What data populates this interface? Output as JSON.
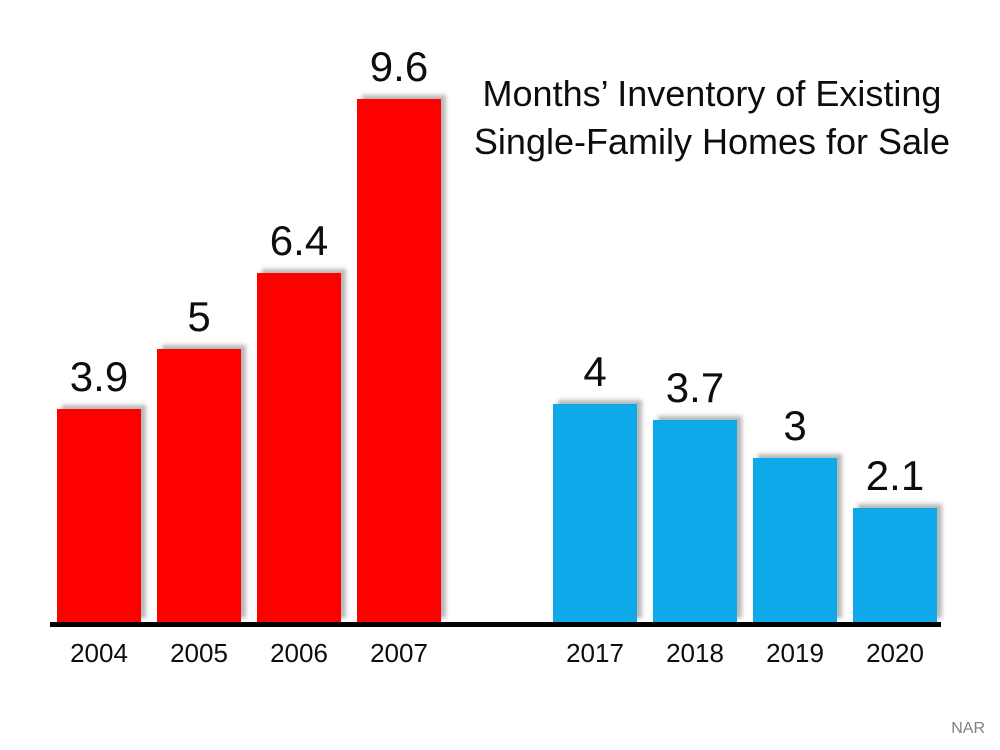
{
  "title": {
    "line1": "Months’ Inventory of Existing",
    "line2": "Single-Family Homes for Sale"
  },
  "source": "NAR",
  "chart_data": {
    "type": "bar",
    "title": "Months’ Inventory of Existing Single-Family Homes for Sale",
    "xlabel": "",
    "ylabel": "",
    "ylim": [
      0,
      10
    ],
    "grid": false,
    "legend": false,
    "data_labels": true,
    "axis_color": "#000000",
    "background_color": "#ffffff",
    "source_label": "NAR",
    "categories": [
      "2004",
      "2005",
      "2006",
      "2007",
      "2017",
      "2018",
      "2019",
      "2020"
    ],
    "values": [
      3.9,
      5,
      6.4,
      9.6,
      4,
      3.7,
      3,
      2.1
    ],
    "series": [
      {
        "name": "2004-2007",
        "color": "#fe0000",
        "categories": [
          "2004",
          "2005",
          "2006",
          "2007"
        ],
        "values": [
          3.9,
          5,
          6.4,
          9.6
        ],
        "labels": [
          "3.9",
          "5",
          "6.4",
          "9.6"
        ]
      },
      {
        "name": "2017-2020",
        "color": "#0ea9e9",
        "categories": [
          "2017",
          "2018",
          "2019",
          "2020"
        ],
        "values": [
          4,
          3.7,
          3,
          2.1
        ],
        "labels": [
          "4",
          "3.7",
          "3",
          "2.1"
        ]
      }
    ]
  }
}
